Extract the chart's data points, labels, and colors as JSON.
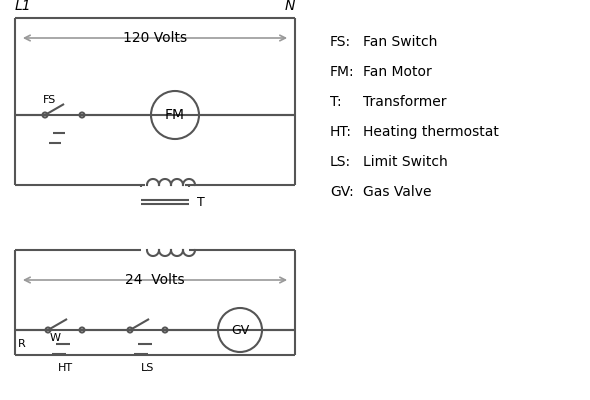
{
  "bg_color": "#ffffff",
  "line_color": "#555555",
  "text_color": "#000000",
  "arrow_color": "#999999",
  "legend_items": [
    [
      "FS:",
      "Fan Switch"
    ],
    [
      "FM:",
      "Fan Motor"
    ],
    [
      "T:",
      "Transformer"
    ],
    [
      "HT:",
      "Heating thermostat"
    ],
    [
      "LS:",
      "Limit Switch"
    ],
    [
      "GV:",
      "Gas Valve"
    ]
  ],
  "L1_label": "L1",
  "N_label": "N",
  "v120_label": "120 Volts",
  "v24_label": "24  Volts",
  "T_label": "T",
  "FS_label": "FS",
  "FM_label": "FM",
  "R_label": "R",
  "W_label": "W",
  "HT_label": "HT",
  "LS_label": "LS",
  "GV_label": "GV"
}
